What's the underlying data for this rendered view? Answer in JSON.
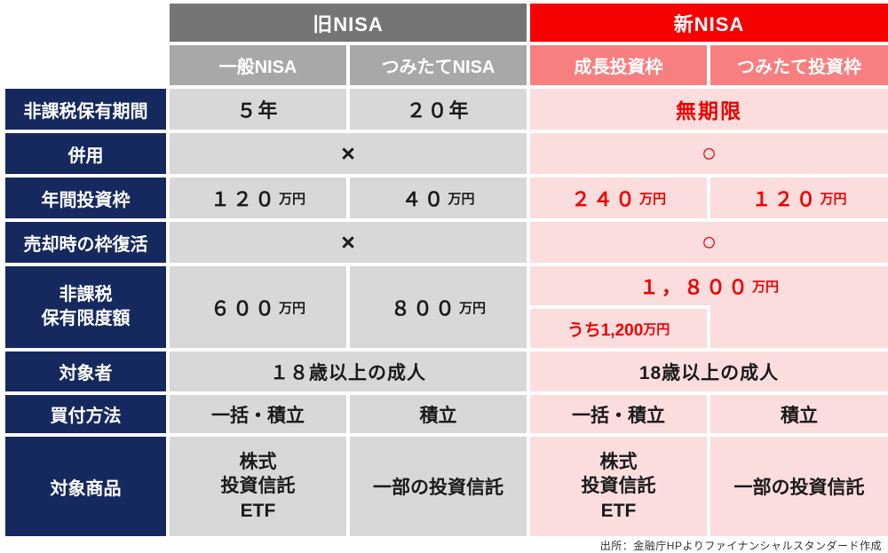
{
  "table": {
    "header": {
      "old_group": "旧NISA",
      "new_group": "新NISA",
      "old_col1": "一般NISA",
      "old_col2": "つみたてNISA",
      "new_col1": "成長投資枠",
      "new_col2": "つみたて投資枠"
    },
    "labels": {
      "period": "非課税保有期間",
      "combo": "併用",
      "annual": "年間投資枠",
      "restore": "売却時の枠復活",
      "limit1": "非課税",
      "limit2": "保有限度額",
      "eligible": "対象者",
      "method": "買付方法",
      "products": "対象商品"
    },
    "period": {
      "old1": "５年",
      "old2": "２０年",
      "new_span": "無期限"
    },
    "combo": {
      "old_span": "×",
      "new_span": "○"
    },
    "annual": {
      "old1_num": "１２０",
      "old2_num": "４０",
      "new1_num": "２４０",
      "new2_num": "１２０",
      "unit": "万円"
    },
    "restore": {
      "old_span": "×",
      "new_span": "○"
    },
    "limit": {
      "old1_num": "６００",
      "old2_num": "８００",
      "new_num": "１，８００",
      "unit": "万円",
      "sub_text": "うち1,200",
      "sub_unit": "万円"
    },
    "eligible": {
      "old_span": "１８歳以上の成人",
      "new_span": "18歳以上の成人"
    },
    "method": {
      "old1": "一括・積立",
      "old2": "積立",
      "new1": "一括・積立",
      "new2": "積立"
    },
    "products": {
      "old1_lines": [
        "株式",
        "投資信託",
        "ETF"
      ],
      "old2": "一部の投資信託",
      "new1_lines": [
        "株式",
        "投資信託",
        "ETF"
      ],
      "new2": "一部の投資信託"
    }
  },
  "footer": {
    "source": "出所：金融庁HPよりファイナンシャルスタンダード作成"
  },
  "colors": {
    "navy_label": "#16295e",
    "old_group_header": "#757575",
    "old_subheader": "#a8a8a8",
    "old_cell": "#d8d8d8",
    "new_group_header": "#f70000",
    "new_subheader": "#f87f7f",
    "new_cell": "#fcdddd",
    "accent_red_text": "#ee0000",
    "header_text": "#ffffff",
    "body_text": "#1a1a1a"
  },
  "chart_data": {
    "type": "table",
    "column_groups": [
      {
        "group": "旧NISA",
        "columns": [
          "一般NISA",
          "つみたてNISA"
        ]
      },
      {
        "group": "新NISA",
        "columns": [
          "成長投資枠",
          "つみたて投資枠"
        ]
      }
    ],
    "rows": [
      {
        "label": "非課税保有期間",
        "old": [
          "５年",
          "２０年"
        ],
        "new": [
          "無期限"
        ]
      },
      {
        "label": "併用",
        "old": [
          "×"
        ],
        "new": [
          "○"
        ]
      },
      {
        "label": "年間投資枠",
        "old": [
          "１２０万円",
          "４０万円"
        ],
        "new": [
          "２４０万円",
          "１２０万円"
        ]
      },
      {
        "label": "売却時の枠復活",
        "old": [
          "×"
        ],
        "new": [
          "○"
        ]
      },
      {
        "label": "非課税保有限度額",
        "old": [
          "６００万円",
          "８００万円"
        ],
        "new": [
          "１，８００万円",
          "うち1,200万円"
        ]
      },
      {
        "label": "対象者",
        "old": [
          "１８歳以上の成人"
        ],
        "new": [
          "18歳以上の成人"
        ]
      },
      {
        "label": "買付方法",
        "old": [
          "一括・積立",
          "積立"
        ],
        "new": [
          "一括・積立",
          "積立"
        ]
      },
      {
        "label": "対象商品",
        "old": [
          "株式 投資信託 ETF",
          "一部の投資信託"
        ],
        "new": [
          "株式 投資信託 ETF",
          "一部の投資信託"
        ]
      }
    ],
    "source": "出所：金融庁HPよりファイナンシャルスタンダード作成",
    "legend_position": "none",
    "grid": false
  }
}
